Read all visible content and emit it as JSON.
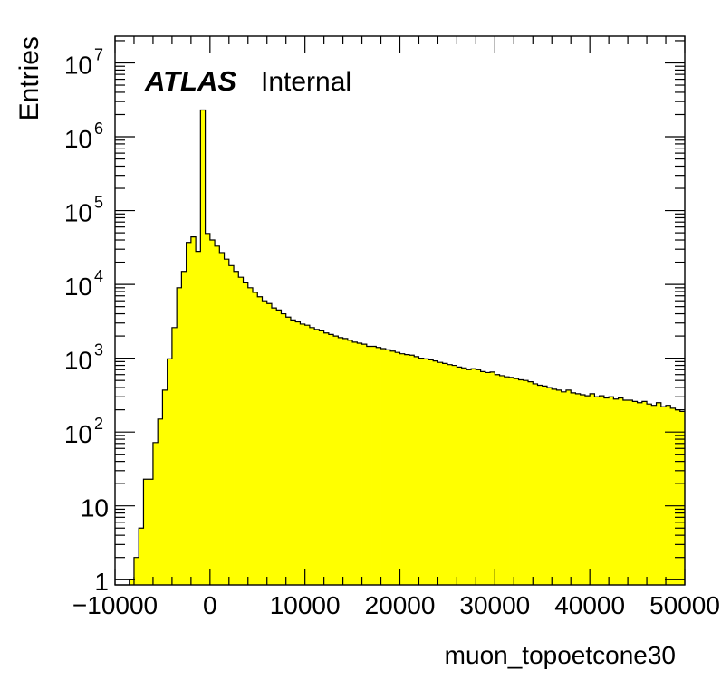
{
  "chart_data": {
    "type": "bar",
    "histogram": true,
    "xlabel": "muon_topoetcone30",
    "ylabel": "Entries",
    "label_bold": "ATLAS",
    "label_status": "Internal",
    "y_log_scale": true,
    "xlim": [
      -10000,
      50000
    ],
    "ylim": [
      0.85,
      23000000.0
    ],
    "bin_width": 500,
    "x_start": -10000,
    "x_ticks": [
      {
        "value": -10000,
        "label": "−10000"
      },
      {
        "value": 0,
        "label": "0"
      },
      {
        "value": 10000,
        "label": "10000"
      },
      {
        "value": 20000,
        "label": "20000"
      },
      {
        "value": 30000,
        "label": "30000"
      },
      {
        "value": 40000,
        "label": "40000"
      },
      {
        "value": 50000,
        "label": "50000"
      }
    ],
    "y_ticks": [
      {
        "value": 1,
        "base": "1",
        "exp": ""
      },
      {
        "value": 10,
        "base": "10",
        "exp": ""
      },
      {
        "value": 100,
        "base": "10",
        "exp": "2"
      },
      {
        "value": 1000,
        "base": "10",
        "exp": "3"
      },
      {
        "value": 10000,
        "base": "10",
        "exp": "4"
      },
      {
        "value": 100000,
        "base": "10",
        "exp": "5"
      },
      {
        "value": 1000000,
        "base": "10",
        "exp": "6"
      },
      {
        "value": 10000000,
        "base": "10",
        "exp": "7"
      }
    ],
    "grid": false,
    "fill_color": "#ffff00",
    "line_color": "#000000",
    "values": [
      0,
      0,
      0,
      1,
      2,
      5,
      23,
      23,
      72,
      150,
      370,
      980,
      2600,
      9000,
      15000,
      37000,
      44000,
      28000,
      2300000,
      49000,
      40000,
      33000,
      27000,
      22000,
      18000,
      15000,
      12500,
      10500,
      9000,
      7800,
      6800,
      6000,
      5500,
      4800,
      4500,
      4000,
      3600,
      3300,
      3100,
      2900,
      2800,
      2600,
      2450,
      2350,
      2200,
      2100,
      2000,
      1900,
      1850,
      1750,
      1650,
      1600,
      1550,
      1450,
      1450,
      1400,
      1350,
      1300,
      1250,
      1200,
      1150,
      1120,
      1100,
      1050,
      1000,
      980,
      950,
      920,
      880,
      850,
      820,
      800,
      760,
      740,
      700,
      720,
      700,
      660,
      640,
      650,
      600,
      580,
      560,
      550,
      530,
      510,
      500,
      480,
      450,
      430,
      420,
      400,
      380,
      370,
      350,
      370,
      340,
      330,
      320,
      310,
      330,
      300,
      310,
      290,
      300,
      280,
      290,
      270,
      270,
      260,
      250,
      260,
      240,
      230,
      250,
      220,
      230,
      210,
      200,
      190
    ]
  }
}
